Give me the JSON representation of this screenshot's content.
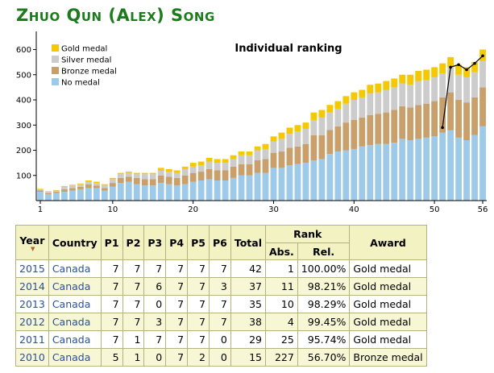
{
  "page": {
    "title": "Zhuo Qun (Alex) Song"
  },
  "chart_data": {
    "type": "bar",
    "stacked": true,
    "title": "Individual ranking",
    "x": [
      1,
      2,
      3,
      4,
      5,
      6,
      7,
      8,
      9,
      10,
      11,
      12,
      13,
      14,
      15,
      16,
      17,
      18,
      19,
      20,
      21,
      22,
      23,
      24,
      25,
      26,
      27,
      28,
      29,
      30,
      31,
      32,
      33,
      34,
      35,
      36,
      37,
      38,
      39,
      40,
      41,
      42,
      43,
      44,
      45,
      46,
      47,
      48,
      49,
      50,
      51,
      52,
      53,
      54,
      55,
      56
    ],
    "x_tick_labels": [
      "1",
      "10",
      "20",
      "30",
      "40",
      "50",
      "56"
    ],
    "x_tick_values": [
      1,
      10,
      20,
      30,
      40,
      50,
      56
    ],
    "y_tick_labels": [
      "100",
      "200",
      "300",
      "400",
      "500",
      "600"
    ],
    "y_tick_values": [
      100,
      200,
      300,
      400,
      500,
      600
    ],
    "ylim": [
      0,
      640
    ],
    "legend_position": "top-left",
    "series": [
      {
        "name": "No medal",
        "color": "#9ecae9",
        "values": [
          35,
          25,
          30,
          35,
          40,
          45,
          50,
          50,
          40,
          55,
          70,
          75,
          65,
          60,
          60,
          70,
          65,
          60,
          65,
          75,
          80,
          85,
          80,
          80,
          90,
          100,
          100,
          110,
          110,
          130,
          130,
          140,
          145,
          150,
          160,
          165,
          185,
          195,
          200,
          205,
          215,
          220,
          225,
          225,
          230,
          245,
          240,
          245,
          250,
          255,
          270,
          280,
          250,
          240,
          260,
          295
        ]
      },
      {
        "name": "Bronze medal",
        "color": "#c9a06b",
        "values": [
          5,
          5,
          5,
          10,
          10,
          10,
          15,
          10,
          10,
          15,
          20,
          20,
          25,
          25,
          25,
          30,
          30,
          30,
          35,
          35,
          35,
          40,
          40,
          40,
          45,
          45,
          45,
          50,
          55,
          60,
          65,
          70,
          70,
          75,
          100,
          95,
          95,
          100,
          110,
          115,
          115,
          120,
          120,
          125,
          130,
          130,
          130,
          135,
          135,
          140,
          140,
          150,
          150,
          150,
          150,
          155
        ]
      },
      {
        "name": "Silver medal",
        "color": "#cccccc",
        "values": [
          5,
          5,
          5,
          10,
          10,
          10,
          10,
          10,
          10,
          15,
          15,
          15,
          15,
          20,
          20,
          20,
          20,
          20,
          25,
          25,
          25,
          30,
          30,
          30,
          30,
          35,
          35,
          40,
          40,
          45,
          50,
          55,
          60,
          60,
          60,
          70,
          70,
          70,
          75,
          80,
          80,
          85,
          85,
          90,
          90,
          90,
          90,
          95,
          95,
          95,
          95,
          100,
          100,
          100,
          100,
          105
        ]
      },
      {
        "name": "Gold medal",
        "color": "#f5c800",
        "values": [
          2,
          2,
          2,
          3,
          3,
          3,
          5,
          5,
          5,
          5,
          5,
          5,
          5,
          5,
          5,
          10,
          10,
          10,
          10,
          15,
          15,
          15,
          15,
          15,
          15,
          15,
          15,
          15,
          20,
          20,
          25,
          25,
          25,
          25,
          30,
          30,
          30,
          30,
          30,
          30,
          30,
          35,
          35,
          35,
          35,
          35,
          40,
          40,
          40,
          40,
          40,
          40,
          40,
          40,
          40,
          45
        ]
      }
    ],
    "ranking_line": {
      "x": [
        51,
        52,
        53,
        54,
        55,
        56
      ],
      "values": [
        290,
        530,
        540,
        520,
        545,
        575
      ]
    }
  },
  "table": {
    "headers": {
      "year": "Year",
      "country": "Country",
      "p1": "P1",
      "p2": "P2",
      "p3": "P3",
      "p4": "P4",
      "p5": "P5",
      "p6": "P6",
      "total": "Total",
      "rank": "Rank",
      "abs": "Abs.",
      "rel": "Rel.",
      "award": "Award"
    },
    "rows": [
      {
        "year": "2015",
        "country": "Canada",
        "p1": "7",
        "p2": "7",
        "p3": "7",
        "p4": "7",
        "p5": "7",
        "p6": "7",
        "total": "42",
        "abs": "1",
        "rel": "100.00%",
        "award": "Gold medal"
      },
      {
        "year": "2014",
        "country": "Canada",
        "p1": "7",
        "p2": "7",
        "p3": "6",
        "p4": "7",
        "p5": "7",
        "p6": "3",
        "total": "37",
        "abs": "11",
        "rel": "98.21%",
        "award": "Gold medal"
      },
      {
        "year": "2013",
        "country": "Canada",
        "p1": "7",
        "p2": "7",
        "p3": "0",
        "p4": "7",
        "p5": "7",
        "p6": "7",
        "total": "35",
        "abs": "10",
        "rel": "98.29%",
        "award": "Gold medal"
      },
      {
        "year": "2012",
        "country": "Canada",
        "p1": "7",
        "p2": "7",
        "p3": "3",
        "p4": "7",
        "p5": "7",
        "p6": "7",
        "total": "38",
        "abs": "4",
        "rel": "99.45%",
        "award": "Gold medal"
      },
      {
        "year": "2011",
        "country": "Canada",
        "p1": "7",
        "p2": "1",
        "p3": "7",
        "p4": "7",
        "p5": "7",
        "p6": "0",
        "total": "29",
        "abs": "25",
        "rel": "95.74%",
        "award": "Gold medal"
      },
      {
        "year": "2010",
        "country": "Canada",
        "p1": "5",
        "p2": "1",
        "p3": "0",
        "p4": "7",
        "p5": "2",
        "p6": "0",
        "total": "15",
        "abs": "227",
        "rel": "56.70%",
        "award": "Bronze medal"
      }
    ]
  }
}
